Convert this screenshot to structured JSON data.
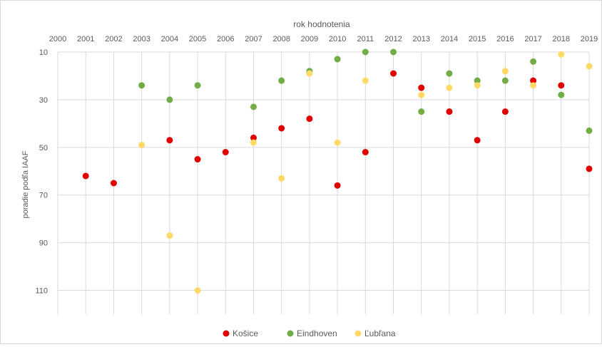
{
  "chart_data": {
    "type": "scatter",
    "title": "",
    "xlabel": "rok hodnotenia",
    "ylabel": "poradie podľa IAAF",
    "x_axis_position": "top",
    "y_axis_reversed": true,
    "grid": true,
    "legend_position": "bottom",
    "x_ticks": [
      "2000",
      "2001",
      "2002",
      "2003",
      "2004",
      "2005",
      "2006",
      "2007",
      "2008",
      "2009",
      "2010",
      "2011",
      "2012",
      "2013",
      "2014",
      "2015",
      "2016",
      "2017",
      "2018",
      "2019"
    ],
    "y_ticks": [
      "10",
      "30",
      "50",
      "70",
      "90",
      "110"
    ],
    "xlim": [
      2000,
      2019
    ],
    "ylim": [
      10,
      120
    ],
    "series": [
      {
        "name": "Košice",
        "color": "#e00000",
        "points": [
          {
            "x": 2001,
            "y": 62
          },
          {
            "x": 2002,
            "y": 65
          },
          {
            "x": 2004,
            "y": 47
          },
          {
            "x": 2005,
            "y": 55
          },
          {
            "x": 2006,
            "y": 52
          },
          {
            "x": 2007,
            "y": 46
          },
          {
            "x": 2008,
            "y": 42
          },
          {
            "x": 2009,
            "y": 38
          },
          {
            "x": 2010,
            "y": 66
          },
          {
            "x": 2011,
            "y": 52
          },
          {
            "x": 2012,
            "y": 19
          },
          {
            "x": 2013,
            "y": 25
          },
          {
            "x": 2014,
            "y": 35
          },
          {
            "x": 2015,
            "y": 47
          },
          {
            "x": 2016,
            "y": 35
          },
          {
            "x": 2017,
            "y": 22
          },
          {
            "x": 2018,
            "y": 24
          },
          {
            "x": 2019,
            "y": 59
          }
        ]
      },
      {
        "name": "Eindhoven",
        "color": "#70ad47",
        "points": [
          {
            "x": 2003,
            "y": 24
          },
          {
            "x": 2004,
            "y": 30
          },
          {
            "x": 2005,
            "y": 24
          },
          {
            "x": 2007,
            "y": 33
          },
          {
            "x": 2008,
            "y": 22
          },
          {
            "x": 2009,
            "y": 18
          },
          {
            "x": 2010,
            "y": 13
          },
          {
            "x": 2011,
            "y": 10
          },
          {
            "x": 2012,
            "y": 10
          },
          {
            "x": 2013,
            "y": 35
          },
          {
            "x": 2014,
            "y": 19
          },
          {
            "x": 2015,
            "y": 22
          },
          {
            "x": 2016,
            "y": 22
          },
          {
            "x": 2017,
            "y": 14
          },
          {
            "x": 2018,
            "y": 28
          },
          {
            "x": 2019,
            "y": 43
          }
        ]
      },
      {
        "name": "Ľubľana",
        "color": "#ffd966",
        "points": [
          {
            "x": 2003,
            "y": 49
          },
          {
            "x": 2004,
            "y": 87
          },
          {
            "x": 2005,
            "y": 110
          },
          {
            "x": 2007,
            "y": 48
          },
          {
            "x": 2008,
            "y": 63
          },
          {
            "x": 2009,
            "y": 19
          },
          {
            "x": 2010,
            "y": 48
          },
          {
            "x": 2011,
            "y": 22
          },
          {
            "x": 2013,
            "y": 28
          },
          {
            "x": 2014,
            "y": 25
          },
          {
            "x": 2015,
            "y": 24
          },
          {
            "x": 2016,
            "y": 18
          },
          {
            "x": 2017,
            "y": 24
          },
          {
            "x": 2018,
            "y": 11
          },
          {
            "x": 2019,
            "y": 16
          }
        ]
      }
    ]
  }
}
